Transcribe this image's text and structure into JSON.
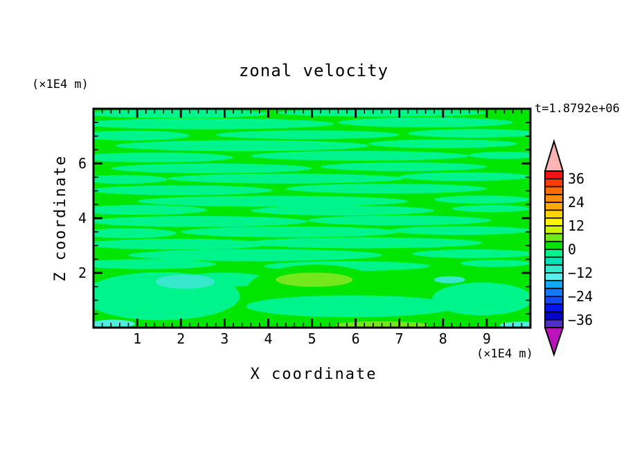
{
  "header": {
    "title": "zonal velocity",
    "time_label": "t=1.8792e+06"
  },
  "axes": {
    "x": {
      "title": "X coordinate",
      "unit_label": "(×1E4 m)",
      "min": 0,
      "max": 10,
      "major_ticks": [
        {
          "value": 1,
          "label": "1"
        },
        {
          "value": 2,
          "label": "2"
        },
        {
          "value": 3,
          "label": "3"
        },
        {
          "value": 4,
          "label": "4"
        },
        {
          "value": 5,
          "label": "5"
        },
        {
          "value": 6,
          "label": "6"
        },
        {
          "value": 7,
          "label": "7"
        },
        {
          "value": 8,
          "label": "8"
        },
        {
          "value": 9,
          "label": "9"
        }
      ],
      "minor_step": 0.2
    },
    "z": {
      "title": "Z coordinate",
      "unit_label": "(×1E4 m)",
      "min": 0,
      "max": 8,
      "major_ticks": [
        {
          "value": 2,
          "label": "2"
        },
        {
          "value": 4,
          "label": "4"
        },
        {
          "value": 6,
          "label": "6"
        }
      ],
      "minor_step": 0.5
    }
  },
  "colorbar": {
    "min": -40,
    "max": 40,
    "segment_step": 4,
    "segment_colors_top_to_bottom": [
      "#f21414",
      "#fc3c04",
      "#ff6c04",
      "#ff8c04",
      "#ffaa04",
      "#ffd204",
      "#fcf400",
      "#ccf404",
      "#74e81c",
      "#00e600",
      "#00f48c",
      "#00e2b4",
      "#38e8cc",
      "#54f0f0",
      "#14a8fc",
      "#1478fc",
      "#1448fc",
      "#0414f0",
      "#0404cc",
      "#5030c8"
    ],
    "over_arrow_color": "#ffb4b4",
    "under_arrow_color": "#bc14bc",
    "tick_labels": [
      {
        "value": 36,
        "label": "36"
      },
      {
        "value": 24,
        "label": "24"
      },
      {
        "value": 12,
        "label": "12"
      },
      {
        "value": 0,
        "label": "0"
      },
      {
        "value": -12,
        "label": "−12"
      },
      {
        "value": -24,
        "label": "−24"
      },
      {
        "value": -36,
        "label": "−36"
      }
    ]
  },
  "chart_data": {
    "type": "heatmap",
    "title": "zonal velocity",
    "xlabel": "X coordinate (×1E4 m)",
    "ylabel": "Z coordinate (×1E4 m)",
    "time_annotation": "t=1.8792e+06",
    "x_range": [
      0,
      10
    ],
    "z_range": [
      0,
      8
    ],
    "contour_levels_range": [
      -40,
      40
    ],
    "contour_interval": 4,
    "palette": {
      "green": "#00e600",
      "spring": "#00f48c",
      "turquoise": "#38e8cc",
      "cyan_light": "#50ecdc",
      "chartreuse": "#74e81c"
    },
    "color_value_ranges": {
      "green": [
        0,
        4
      ],
      "spring": [
        -4,
        0
      ],
      "turquoise": [
        -8,
        -4
      ],
      "cyan_light": [
        -12,
        -8
      ],
      "chartreuse": [
        4,
        8
      ]
    },
    "background_color_key": "green",
    "feature_format": "[cx, cz, rx, rz, color_key] in data coordinates",
    "features": [
      [
        1.9,
        7.82,
        2.1,
        0.16,
        "spring"
      ],
      [
        6.6,
        7.85,
        2.4,
        0.14,
        "spring"
      ],
      [
        2.6,
        7.45,
        2.9,
        0.2,
        "spring"
      ],
      [
        7.6,
        7.5,
        2.0,
        0.18,
        "spring"
      ],
      [
        0.9,
        7.02,
        1.3,
        0.18,
        "spring"
      ],
      [
        4.9,
        7.05,
        2.1,
        0.16,
        "spring"
      ],
      [
        8.7,
        7.1,
        1.5,
        0.16,
        "spring"
      ],
      [
        3.4,
        6.65,
        2.9,
        0.2,
        "spring"
      ],
      [
        8.0,
        6.72,
        1.7,
        0.16,
        "spring"
      ],
      [
        1.4,
        6.22,
        1.8,
        0.18,
        "spring"
      ],
      [
        6.1,
        6.28,
        2.5,
        0.18,
        "spring"
      ],
      [
        9.4,
        6.3,
        0.8,
        0.13,
        "spring"
      ],
      [
        2.7,
        5.82,
        2.3,
        0.18,
        "spring"
      ],
      [
        7.1,
        5.88,
        1.9,
        0.16,
        "spring"
      ],
      [
        0.7,
        5.42,
        1.0,
        0.16,
        "spring"
      ],
      [
        4.4,
        5.45,
        2.7,
        0.18,
        "spring"
      ],
      [
        8.5,
        5.52,
        1.5,
        0.16,
        "spring"
      ],
      [
        2.0,
        5.02,
        2.1,
        0.18,
        "spring"
      ],
      [
        6.7,
        5.08,
        2.3,
        0.18,
        "spring"
      ],
      [
        4.1,
        4.62,
        3.1,
        0.2,
        "spring"
      ],
      [
        8.9,
        4.68,
        1.1,
        0.15,
        "spring"
      ],
      [
        1.1,
        4.3,
        1.5,
        0.18,
        "spring"
      ],
      [
        5.7,
        4.28,
        2.1,
        0.18,
        "spring"
      ],
      [
        9.1,
        4.35,
        0.9,
        0.13,
        "spring"
      ],
      [
        2.4,
        3.88,
        2.5,
        0.2,
        "spring"
      ],
      [
        7.0,
        3.92,
        2.1,
        0.18,
        "spring"
      ],
      [
        0.8,
        3.45,
        1.1,
        0.18,
        "spring"
      ],
      [
        4.5,
        3.5,
        2.5,
        0.2,
        "spring"
      ],
      [
        8.4,
        3.55,
        1.6,
        0.16,
        "spring"
      ],
      [
        1.9,
        3.05,
        2.1,
        0.2,
        "spring"
      ],
      [
        6.2,
        3.1,
        2.7,
        0.2,
        "spring"
      ],
      [
        3.7,
        2.65,
        2.9,
        0.22,
        "spring"
      ],
      [
        8.7,
        2.7,
        1.4,
        0.16,
        "spring"
      ],
      [
        1.2,
        2.32,
        1.6,
        0.18,
        "spring"
      ],
      [
        5.8,
        2.25,
        1.9,
        0.18,
        "spring"
      ],
      [
        9.2,
        2.35,
        0.8,
        0.13,
        "spring"
      ],
      [
        1.55,
        1.15,
        1.8,
        0.88,
        "spring"
      ],
      [
        3.0,
        1.75,
        1.0,
        0.26,
        "spring"
      ],
      [
        8.9,
        1.05,
        1.15,
        0.6,
        "spring"
      ],
      [
        5.1,
        1.35,
        1.6,
        0.95,
        "green"
      ],
      [
        5.9,
        0.78,
        2.4,
        0.4,
        "spring"
      ],
      [
        5.05,
        1.75,
        0.88,
        0.26,
        "chartreuse"
      ],
      [
        2.1,
        1.68,
        0.68,
        0.26,
        "turquoise"
      ],
      [
        8.15,
        1.75,
        0.36,
        0.13,
        "turquoise"
      ],
      [
        0.45,
        0.14,
        0.5,
        0.15,
        "cyan_light"
      ],
      [
        9.8,
        0.1,
        0.5,
        0.12,
        "cyan_light"
      ],
      [
        6.6,
        0.1,
        1.05,
        0.13,
        "chartreuse"
      ]
    ]
  },
  "layout_colors": {
    "plot_border": "#000000",
    "text": "#000000",
    "background": "#ffffff"
  }
}
